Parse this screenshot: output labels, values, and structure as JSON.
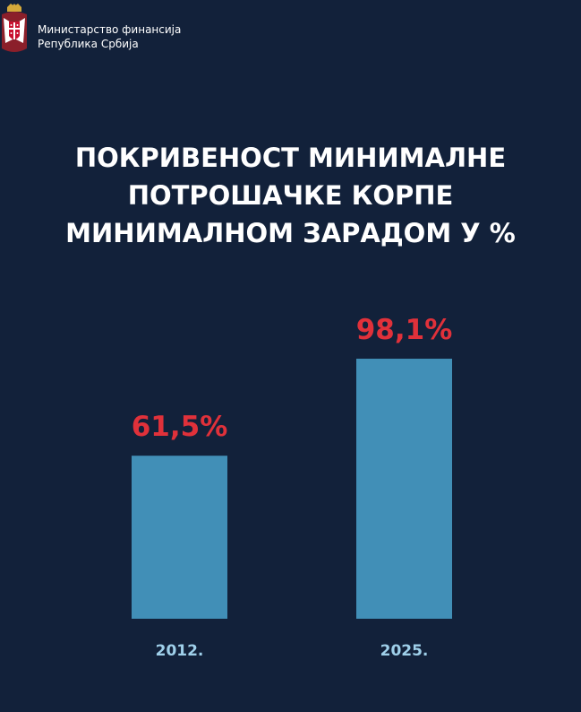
{
  "header": {
    "org_line1": "Министарство финансија",
    "org_line2": "Република Србија",
    "logo_icon": "serbian-coat-of-arms-icon"
  },
  "chart_data": {
    "type": "bar",
    "title_lines": [
      "ПОКРИВЕНОСТ МИНИМАЛНЕ",
      "ПОТРОШАЧКЕ КОРПЕ",
      "МИНИМАЛНОМ ЗАРАДОМ У %"
    ],
    "categories": [
      "2012.",
      "2025."
    ],
    "values": [
      61.5,
      98.1
    ],
    "value_labels": [
      "61,5%",
      "98,1%"
    ],
    "xlabel": "",
    "ylabel": "",
    "grid": false,
    "legend": "none",
    "colors": {
      "background": "#12213a",
      "bar": "#418fb7",
      "value_label": "#e0313a",
      "category_label": "#9fd0ea",
      "title": "#ffffff"
    }
  }
}
